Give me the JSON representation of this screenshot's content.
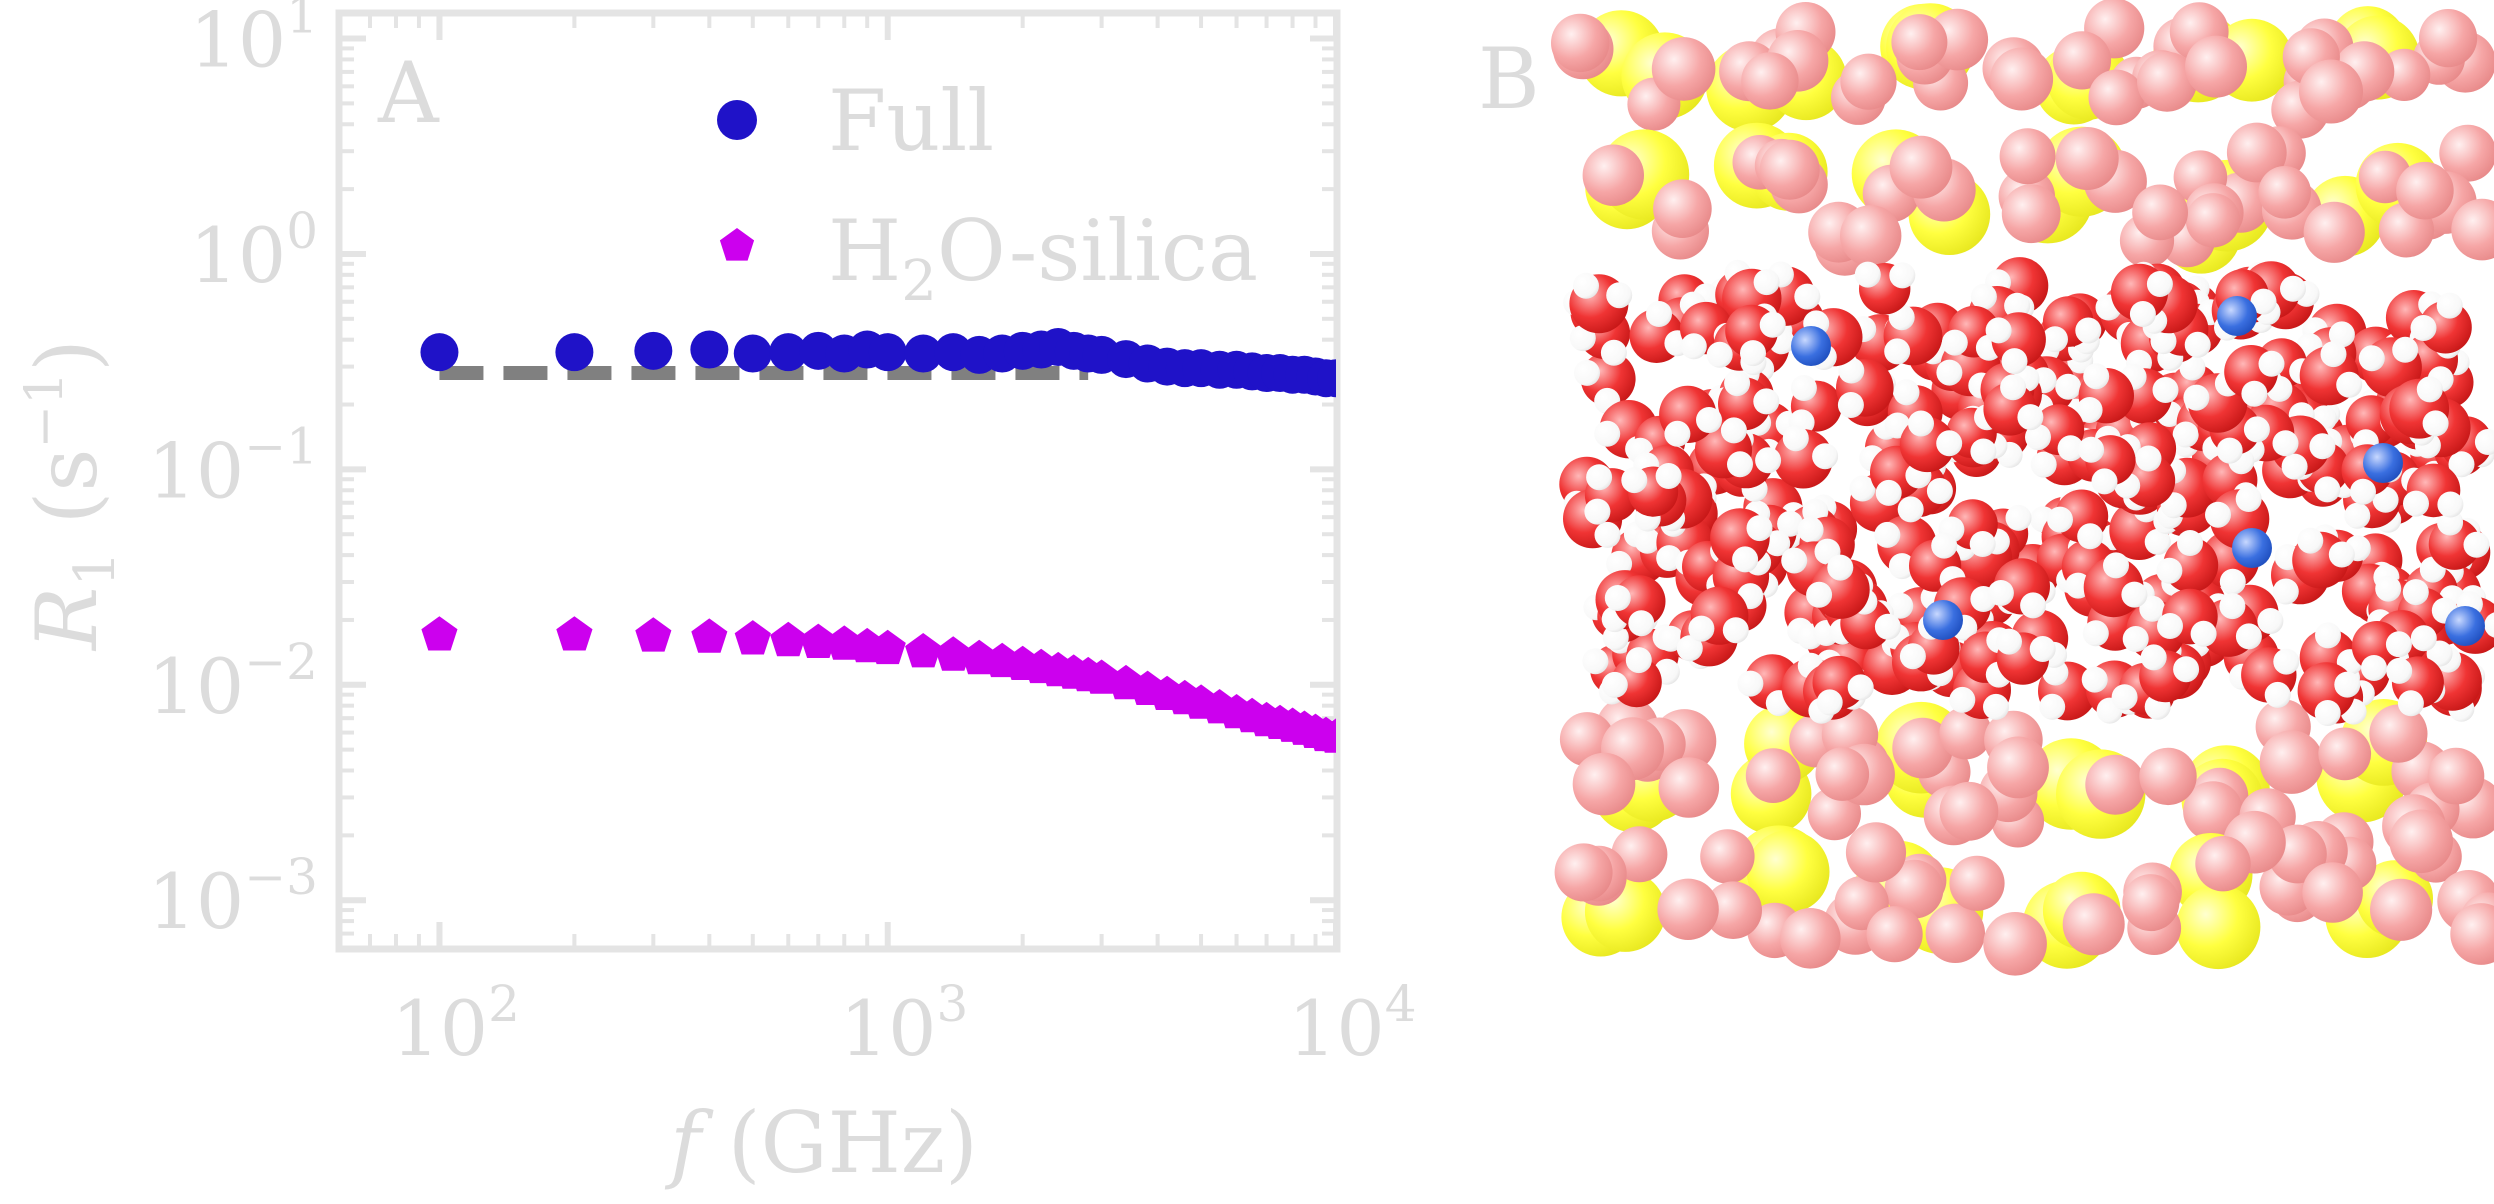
{
  "panels": {
    "a_label": "A",
    "b_label": "B"
  },
  "chart_data": {
    "type": "scatter",
    "title": "",
    "xlabel": "f (GHz)",
    "xlabel_parts": {
      "var": "f",
      "unit": " (GHz)"
    },
    "ylabel": "R1 (s−1)",
    "ylabel_parts": {
      "var": "R",
      "sub": "1",
      "unit_open": " (s",
      "unit_exp": "−1",
      "unit_close": ")"
    },
    "xscale": "log",
    "yscale": "log",
    "xlim": [
      60,
      10000
    ],
    "ylim": [
      0.0006,
      13
    ],
    "x_ticks": [
      {
        "value": 100,
        "base": "10",
        "exp": "2"
      },
      {
        "value": 1000,
        "base": "10",
        "exp": "3"
      },
      {
        "value": 10000,
        "base": "10",
        "exp": "4"
      }
    ],
    "y_ticks": [
      {
        "value": 0.001,
        "base": "10",
        "exp": "−3"
      },
      {
        "value": 0.01,
        "base": "10",
        "exp": "−2"
      },
      {
        "value": 0.1,
        "base": "10",
        "exp": "−1"
      },
      {
        "value": 1,
        "base": "10",
        "exp": "0"
      },
      {
        "value": 10,
        "base": "10",
        "exp": "1"
      }
    ],
    "grid": false,
    "legend_position": "top-right",
    "legend": [
      {
        "key": "full",
        "text": "Full"
      },
      {
        "key": "h2o",
        "text_base": "H",
        "text_sub": "2",
        "text_rest": "O-silica"
      }
    ],
    "series": [
      {
        "key": "full",
        "name": "Full",
        "marker": "circle",
        "color": "#1f12c8",
        "x": [
          100,
          200,
          300,
          400,
          500,
          600,
          700,
          800,
          900,
          1000,
          1200,
          1400,
          1600,
          1800,
          2000,
          2200,
          2400,
          2600,
          2800,
          3000,
          3400,
          3800,
          4200,
          4600,
          5000,
          5500,
          6000,
          6500,
          7000,
          7500,
          8000,
          8500,
          9000,
          9500,
          10000
        ],
        "y": [
          0.35,
          0.35,
          0.355,
          0.36,
          0.345,
          0.35,
          0.355,
          0.345,
          0.36,
          0.35,
          0.345,
          0.35,
          0.34,
          0.345,
          0.355,
          0.36,
          0.37,
          0.355,
          0.345,
          0.34,
          0.325,
          0.31,
          0.3,
          0.295,
          0.295,
          0.29,
          0.29,
          0.285,
          0.28,
          0.28,
          0.275,
          0.275,
          0.27,
          0.265,
          0.265
        ]
      },
      {
        "key": "h2o",
        "name": "H2O-silica",
        "marker": "pentagon",
        "color": "#cc00ee",
        "x": [
          100,
          200,
          300,
          400,
          500,
          600,
          700,
          800,
          900,
          1000,
          1200,
          1400,
          1600,
          1800,
          2000,
          2200,
          2400,
          2600,
          2800,
          3000,
          3400,
          3800,
          4200,
          4600,
          5000,
          5500,
          6000,
          6500,
          7000,
          7500,
          8000,
          8500,
          9000,
          9500,
          10000
        ],
        "y": [
          0.017,
          0.017,
          0.0168,
          0.0166,
          0.0163,
          0.016,
          0.0157,
          0.0154,
          0.015,
          0.0147,
          0.0142,
          0.0137,
          0.0132,
          0.0128,
          0.0124,
          0.012,
          0.0116,
          0.0113,
          0.011,
          0.0107,
          0.0101,
          0.0095,
          0.009,
          0.0086,
          0.0082,
          0.0078,
          0.0074,
          0.0071,
          0.0068,
          0.0066,
          0.0064,
          0.0062,
          0.006,
          0.0058,
          0.0057
        ]
      }
    ],
    "reference_line": {
      "name": "",
      "style": "dashed",
      "color": "#808080",
      "x": [
        100,
        2800
      ],
      "y": [
        0.28,
        0.28
      ]
    }
  },
  "molecule_panel": {
    "colors": {
      "silicon": "#ffff33",
      "oxygen": "#f04a4a",
      "hydrogen": "#ffffff",
      "ion": "#3a6fe0"
    }
  }
}
